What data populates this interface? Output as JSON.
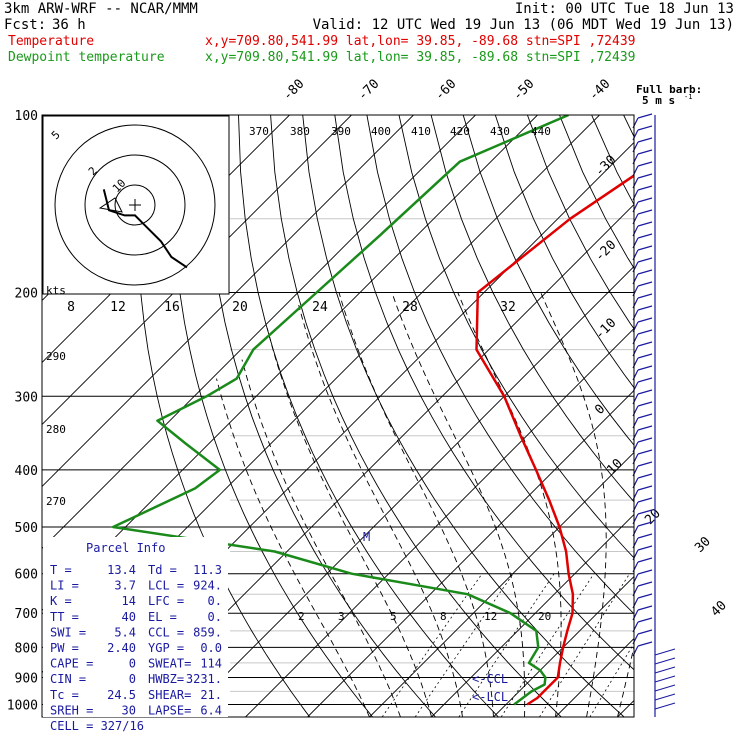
{
  "header": {
    "line1_left": "3km ARW-WRF -- NCAR/MMM",
    "line1_right": "Init: 00 UTC Tue 18 Jun 13",
    "line2_left": "Fcst:",
    "line2_fcst": "36 h",
    "line2_right": "Valid: 12 UTC Wed 19 Jun 13 (06 MDT Wed 19 Jun 13)",
    "temp_label": "Temperature",
    "temp_info": "x,y=709.80,541.99   lat,lon= 39.85, -89.68   stn=SPI ,72439",
    "dew_label": "Dewpoint temperature",
    "dew_info": "x,y=709.80,541.99   lat,lon= 39.85, -89.68   stn=SPI ,72439"
  },
  "colors": {
    "temperature": "#e00000",
    "dewpoint": "#1a8a1a",
    "info_text": "#1a1aa0",
    "isotherm": "#000000",
    "grid": "#000000"
  },
  "barb_legend": {
    "line1": "Full barb:",
    "line2": "5 m s",
    "superscript": "-1"
  },
  "hodograph": {
    "kts_label": "kts",
    "ring_labels": [
      "5",
      "2",
      "10"
    ],
    "speed_ticks": [
      "8",
      "12",
      "16",
      "20",
      "24",
      "28",
      "32"
    ]
  },
  "parcel_info": {
    "title": "Parcel Info",
    "rows": [
      [
        "T   =",
        "13.4",
        "Td =",
        "11.3"
      ],
      [
        "LI  =",
        "3.7",
        "LCL =",
        "924."
      ],
      [
        "K   =",
        "14",
        "LFC =",
        "0."
      ],
      [
        "TT  =",
        "40",
        "EL  =",
        "0."
      ],
      [
        "SWI =",
        "5.4",
        "CCL =",
        "859."
      ],
      [
        "PW  =",
        "2.40",
        "YGP =",
        "0.0"
      ],
      [
        "CAPE =",
        "0",
        "SWEAT=",
        "114"
      ],
      [
        "CIN  =",
        "0",
        "HWBZ= ",
        "3231."
      ],
      [
        "Tc   =",
        "24.5",
        "SHEAR=",
        "21."
      ],
      [
        "SREH =",
        "30",
        "LAPSE=",
        "6.4"
      ],
      [
        "CELL = 327/16",
        "",
        "",
        ""
      ]
    ],
    "ccl_marker": "<-CCL",
    "lcl_marker": "<-LCL"
  },
  "chart_data": {
    "type": "line",
    "chart_kind": "skew-T log-P",
    "pressure_levels": [
      100,
      200,
      300,
      400,
      500,
      600,
      700,
      800,
      900,
      1000
    ],
    "top_isotherm_labels": [
      "-80",
      "-70",
      "-60",
      "-50",
      "-40"
    ],
    "right_isotherm_labels": [
      "-30",
      "-20",
      "-10",
      "0",
      "10",
      "20",
      "30",
      "40"
    ],
    "theta_labels": [
      "370",
      "380",
      "390",
      "400",
      "410",
      "420",
      "430",
      "440"
    ],
    "left_theta_labels": [
      "290",
      "280",
      "270"
    ],
    "mixing_ratio_labels": [
      "2",
      "3",
      "5",
      "8",
      "12",
      "20"
    ],
    "special_marker": "M",
    "series": [
      {
        "name": "Temperature",
        "color": "#e00000",
        "points": [
          [
            100,
            -50
          ],
          [
            150,
            -58
          ],
          [
            200,
            -61
          ],
          [
            250,
            -52
          ],
          [
            300,
            -40
          ],
          [
            350,
            -31
          ],
          [
            400,
            -23
          ],
          [
            450,
            -16
          ],
          [
            500,
            -10
          ],
          [
            550,
            -5
          ],
          [
            600,
            -1
          ],
          [
            650,
            3
          ],
          [
            700,
            6
          ],
          [
            750,
            8
          ],
          [
            800,
            10
          ],
          [
            850,
            12
          ],
          [
            900,
            14
          ],
          [
            925,
            14
          ],
          [
            950,
            14
          ],
          [
            975,
            14
          ],
          [
            1000,
            13.4
          ]
        ]
      },
      {
        "name": "Dewpoint temperature",
        "color": "#1a8a1a",
        "points": [
          [
            100,
            -75
          ],
          [
            120,
            -85
          ],
          [
            160,
            -86
          ],
          [
            200,
            -87
          ],
          [
            250,
            -88
          ],
          [
            280,
            -86
          ],
          [
            300,
            -88
          ],
          [
            330,
            -92
          ],
          [
            360,
            -84
          ],
          [
            400,
            -74
          ],
          [
            430,
            -75
          ],
          [
            500,
            -82
          ],
          [
            550,
            -52
          ],
          [
            600,
            -36
          ],
          [
            650,
            -14
          ],
          [
            700,
            -4
          ],
          [
            750,
            3
          ],
          [
            800,
            6
          ],
          [
            850,
            7
          ],
          [
            875,
            10
          ],
          [
            900,
            12
          ],
          [
            925,
            13
          ],
          [
            950,
            12
          ],
          [
            1000,
            11.3
          ]
        ]
      }
    ],
    "hodograph_trace_kts": [
      [
        -12,
        6
      ],
      [
        -10,
        -2
      ],
      [
        -4,
        -4
      ],
      [
        0,
        -4
      ],
      [
        4,
        -8
      ],
      [
        10,
        -14
      ],
      [
        14,
        -20
      ],
      [
        20,
        -24
      ]
    ]
  }
}
